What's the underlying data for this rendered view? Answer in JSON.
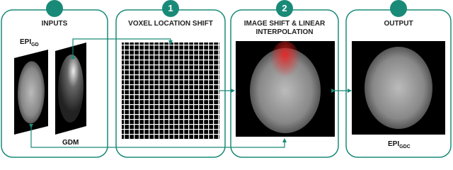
{
  "panels": [
    {
      "title": "INPUTS",
      "labels": [
        {
          "main": "EPI",
          "sub": "GD"
        },
        {
          "main": "GDM"
        }
      ]
    },
    {
      "badge": "1",
      "title": "VOXEL LOCATION SHIFT"
    },
    {
      "badge": "2",
      "title": "IMAGE SHIFT & LINEAR INTERPOLATION"
    },
    {
      "title": "OUTPUT",
      "labels": [
        {
          "main": "EPI",
          "sub": "GDC"
        }
      ]
    }
  ]
}
